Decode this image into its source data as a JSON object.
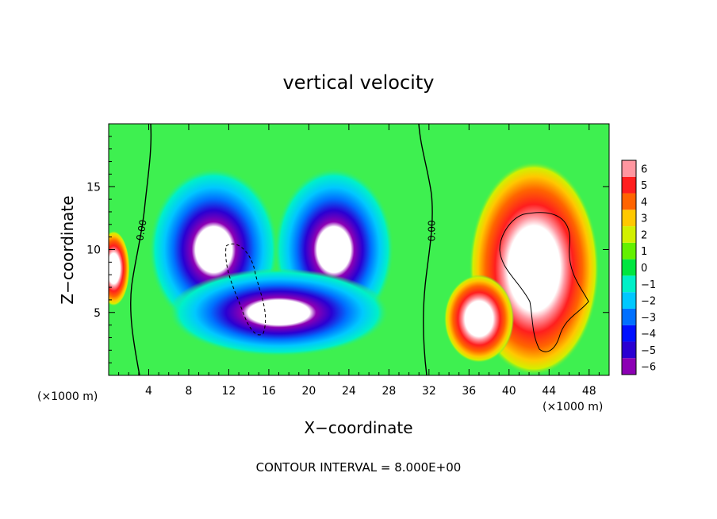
{
  "chart_data": {
    "type": "heatmap",
    "title": "vertical velocity",
    "xlabel": "X−coordinate",
    "ylabel": "Z−coordinate",
    "x_unit_left": "(×1000 m)",
    "x_unit_right": "(×1000 m)",
    "footer": "CONTOUR INTERVAL = 8.000E+00",
    "xlim": [
      0,
      50
    ],
    "ylim": [
      0,
      20
    ],
    "x_ticks": [
      4,
      8,
      12,
      16,
      20,
      24,
      28,
      32,
      36,
      40,
      44,
      48
    ],
    "x_tick_labels": [
      "4",
      "8",
      "12",
      "16",
      "20",
      "24",
      "28",
      "32",
      "36",
      "40",
      "44",
      "48"
    ],
    "y_ticks": [
      5,
      10,
      15
    ],
    "y_tick_labels": [
      "5",
      "10",
      "15"
    ],
    "contour_labels": [
      {
        "text": "0.00",
        "x": 3.6,
        "y": 11.5,
        "rotation": -80
      },
      {
        "text": "0.00",
        "x": 32.6,
        "y": 11.5,
        "rotation": -90
      }
    ],
    "colorbar": {
      "values": [
        -6,
        -5,
        -4,
        -3,
        -2,
        -1,
        0,
        1,
        2,
        3,
        4,
        5,
        6
      ],
      "labels": [
        "−6",
        "−5",
        "−4",
        "−3",
        "−2",
        "−1",
        "0",
        "1",
        "2",
        "3",
        "4",
        "5",
        "6"
      ],
      "colors": [
        "#8c00b4",
        "#2a00d2",
        "#0010ff",
        "#0070ff",
        "#00c8ff",
        "#00f0c8",
        "#00e640",
        "#64f000",
        "#d2f000",
        "#ffc800",
        "#ff6400",
        "#ff1e1e",
        "#ff96a0"
      ]
    },
    "background_color": "#3ef050",
    "features": [
      {
        "kind": "downdraft",
        "cx": 10.5,
        "cy": 10.0,
        "rx": 6.5,
        "ry": 6.5
      },
      {
        "kind": "downdraft",
        "cx": 22.5,
        "cy": 10.0,
        "rx": 6.0,
        "ry": 6.5
      },
      {
        "kind": "downdraft",
        "cx": 17.0,
        "cy": 5.0,
        "rx": 11.0,
        "ry": 3.5
      },
      {
        "kind": "updraft",
        "cx": 42.5,
        "cy": 8.5,
        "rx": 6.5,
        "ry": 8.5
      },
      {
        "kind": "updraft",
        "cx": 37.0,
        "cy": 4.5,
        "rx": 3.5,
        "ry": 3.5
      },
      {
        "kind": "updraft",
        "cx": 0.5,
        "cy": 8.5,
        "rx": 1.6,
        "ry": 3.0
      }
    ]
  }
}
